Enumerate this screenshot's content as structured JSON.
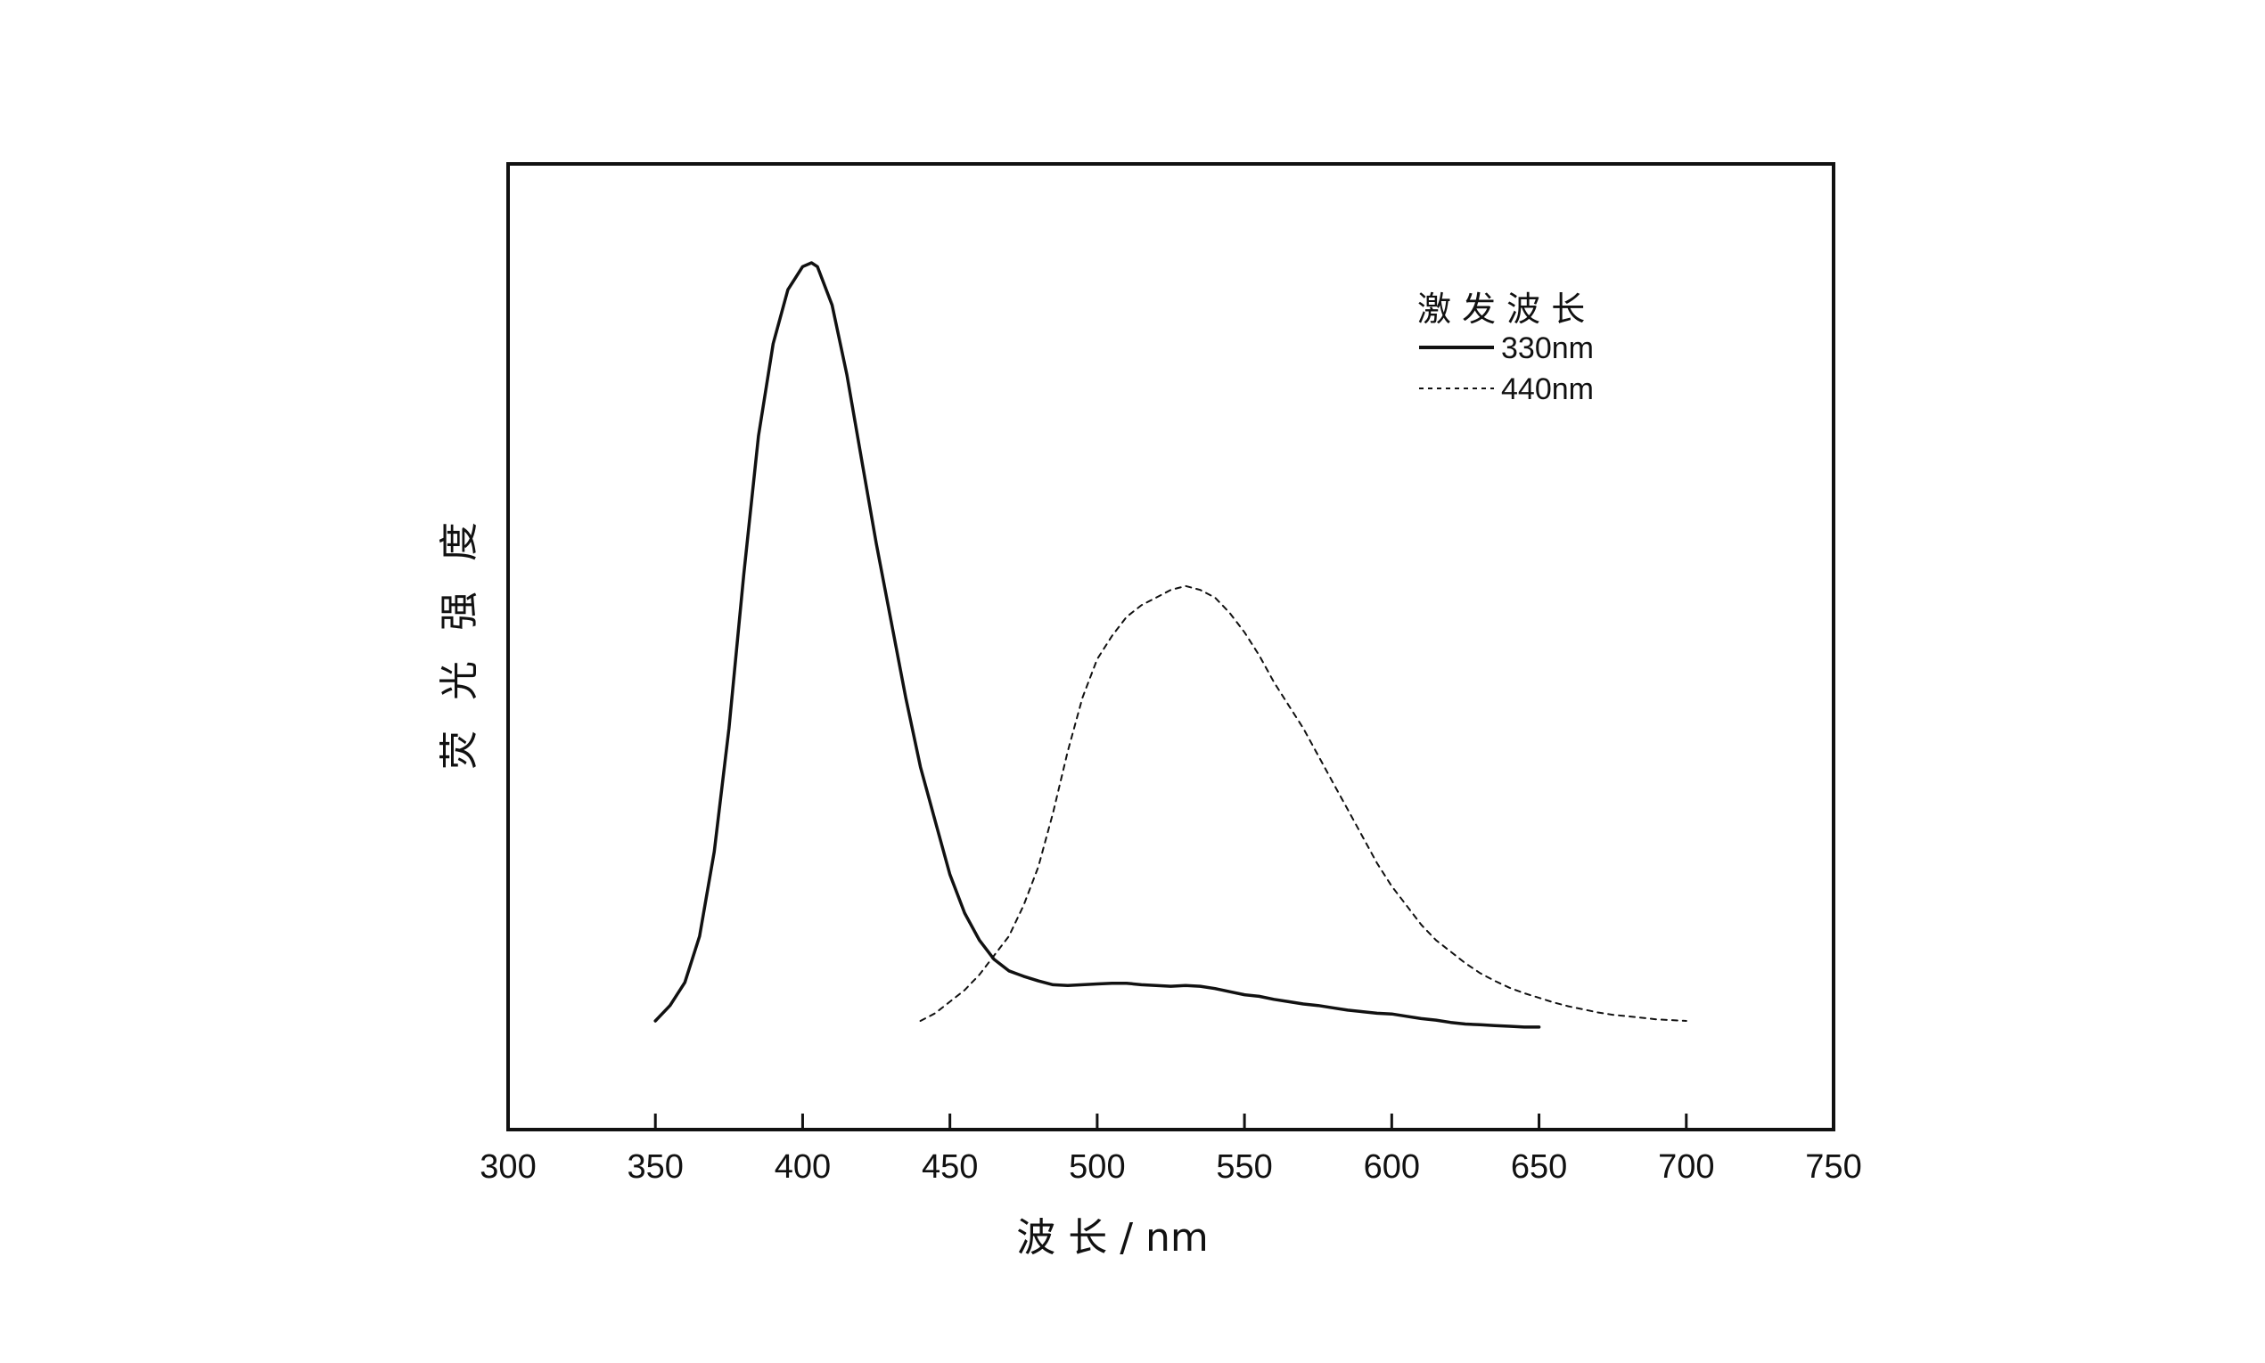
{
  "chart_data": {
    "type": "line",
    "xlabel": "波 长 / nm",
    "ylabel": "荧 光 强 度",
    "xlim": [
      300,
      750
    ],
    "ylim": [
      0,
      1.1
    ],
    "xticks": [
      "300",
      "350",
      "400",
      "450",
      "500",
      "550",
      "600",
      "650",
      "700",
      "750"
    ],
    "yticks": [],
    "grid": false,
    "legend": {
      "title": "激 发 波 长",
      "placement": "top-right"
    },
    "series": [
      {
        "name": "330nm",
        "style": "solid",
        "color": "#111111",
        "x": [
          350,
          355,
          360,
          365,
          370,
          375,
          380,
          385,
          390,
          395,
          400,
          403,
          405,
          410,
          415,
          420,
          425,
          430,
          435,
          440,
          445,
          450,
          455,
          460,
          465,
          470,
          475,
          480,
          485,
          490,
          495,
          500,
          505,
          510,
          515,
          520,
          525,
          530,
          535,
          540,
          545,
          550,
          555,
          560,
          565,
          570,
          575,
          580,
          585,
          590,
          595,
          600,
          605,
          610,
          615,
          620,
          625,
          630,
          635,
          640,
          645,
          650
        ],
        "y": [
          0.0,
          0.02,
          0.05,
          0.11,
          0.22,
          0.38,
          0.58,
          0.76,
          0.88,
          0.95,
          0.98,
          0.985,
          0.98,
          0.93,
          0.84,
          0.73,
          0.62,
          0.52,
          0.42,
          0.33,
          0.26,
          0.19,
          0.14,
          0.105,
          0.08,
          0.065,
          0.058,
          0.052,
          0.047,
          0.046,
          0.047,
          0.048,
          0.049,
          0.049,
          0.047,
          0.046,
          0.045,
          0.046,
          0.045,
          0.042,
          0.038,
          0.034,
          0.032,
          0.028,
          0.025,
          0.022,
          0.02,
          0.017,
          0.014,
          0.012,
          0.01,
          0.009,
          0.006,
          0.003,
          0.001,
          -0.002,
          -0.004,
          -0.005,
          -0.006,
          -0.007,
          -0.008,
          -0.008
        ]
      },
      {
        "name": "440nm",
        "style": "dashed",
        "color": "#111111",
        "x": [
          440,
          445,
          450,
          455,
          460,
          465,
          470,
          475,
          480,
          485,
          490,
          495,
          500,
          505,
          510,
          515,
          520,
          525,
          530,
          535,
          540,
          545,
          550,
          555,
          560,
          565,
          570,
          575,
          580,
          585,
          590,
          595,
          600,
          605,
          610,
          615,
          620,
          625,
          630,
          635,
          640,
          645,
          650,
          655,
          660,
          665,
          670,
          675,
          680,
          685,
          690,
          695,
          700
        ],
        "y": [
          0.0,
          0.01,
          0.025,
          0.04,
          0.06,
          0.085,
          0.11,
          0.15,
          0.2,
          0.27,
          0.35,
          0.42,
          0.47,
          0.5,
          0.525,
          0.54,
          0.55,
          0.56,
          0.565,
          0.56,
          0.55,
          0.53,
          0.505,
          0.475,
          0.44,
          0.41,
          0.38,
          0.345,
          0.31,
          0.275,
          0.24,
          0.205,
          0.175,
          0.15,
          0.125,
          0.105,
          0.09,
          0.075,
          0.062,
          0.052,
          0.043,
          0.036,
          0.03,
          0.024,
          0.019,
          0.015,
          0.011,
          0.008,
          0.006,
          0.004,
          0.002,
          0.001,
          0.0
        ]
      }
    ]
  }
}
